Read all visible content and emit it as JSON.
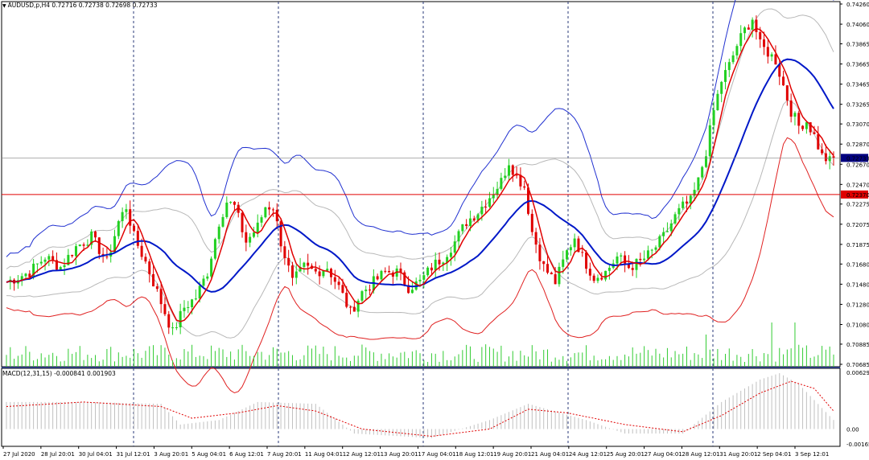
{
  "header": {
    "symbol_line": "AUDUSD,p,H4  0.72716 0.72738 0.72698 0.72733"
  },
  "macd": {
    "label": "MACD(12,31,15) -0.000841 0.001903",
    "levels": [
      "0.006293",
      "0.00",
      "-0.00165"
    ]
  },
  "price_axis": {
    "labels": [
      "0.74260",
      "0.74060",
      "0.73865",
      "0.73665",
      "0.73465",
      "0.73265",
      "0.73070",
      "0.72870",
      "0.72670",
      "0.72470",
      "0.72275",
      "0.72075",
      "0.71875",
      "0.71680",
      "0.71480",
      "0.71280",
      "0.71080",
      "0.70885",
      "0.70685"
    ],
    "current_price": "0.72733",
    "level_price": "0.72370",
    "current_color": "#000080",
    "level_color": "#e00000"
  },
  "time_axis": {
    "labels": [
      "27 Jul 2020",
      "28 Jul 20:01",
      "30 Jul 04:01",
      "31 Jul 12:01",
      "3 Aug 20:01",
      "5 Aug 04:01",
      "6 Aug 12:01",
      "7 Aug 20:01",
      "11 Aug 04:01",
      "12 Aug 12:01",
      "13 Aug 20:01",
      "17 Aug 04:01",
      "18 Aug 12:01",
      "19 Aug 20:01",
      "21 Aug 04:01",
      "24 Aug 12:01",
      "25 Aug 20:01",
      "27 Aug 04:01",
      "28 Aug 12:01",
      "31 Aug 20:01",
      "2 Sep 04:01",
      "3 Sep 12:01"
    ]
  },
  "colors": {
    "bull": "#22d022",
    "bear": "#e00000",
    "ma_fast": "#e00000",
    "ma_slow": "#0018c8",
    "band_upper": "#2030d0",
    "band_lower": "#e02020",
    "inner_bands": "#b8b8b8",
    "volume": "#33cc33",
    "macd_hist": "#c0c0c0",
    "macd_signal": "#e00000",
    "separators": "#2a3a7a"
  },
  "chart_data": {
    "type": "candlestick",
    "symbol": "AUDUSD,p",
    "timeframe": "H4",
    "price_range": [
      0.70685,
      0.7426
    ],
    "current_price": 0.72733,
    "horizontal_level": 0.7237,
    "close_path": [
      [
        0,
        0.715
      ],
      [
        6,
        0.716
      ],
      [
        10,
        0.7175
      ],
      [
        14,
        0.7165
      ],
      [
        18,
        0.7185
      ],
      [
        22,
        0.7195
      ],
      [
        26,
        0.717
      ],
      [
        29,
        0.721
      ],
      [
        31,
        0.7225
      ],
      [
        33,
        0.7195
      ],
      [
        36,
        0.717
      ],
      [
        40,
        0.713
      ],
      [
        43,
        0.71
      ],
      [
        46,
        0.7125
      ],
      [
        49,
        0.7135
      ],
      [
        52,
        0.716
      ],
      [
        55,
        0.721
      ],
      [
        57,
        0.723
      ],
      [
        59,
        0.7225
      ],
      [
        62,
        0.719
      ],
      [
        65,
        0.7205
      ],
      [
        67,
        0.7225
      ],
      [
        69,
        0.7225
      ],
      [
        71,
        0.719
      ],
      [
        74,
        0.715
      ],
      [
        77,
        0.7165
      ],
      [
        80,
        0.716
      ],
      [
        83,
        0.7165
      ],
      [
        86,
        0.7145
      ],
      [
        89,
        0.712
      ],
      [
        92,
        0.714
      ],
      [
        95,
        0.715
      ],
      [
        98,
        0.716
      ],
      [
        101,
        0.716
      ],
      [
        104,
        0.7145
      ],
      [
        107,
        0.715
      ],
      [
        110,
        0.7165
      ],
      [
        113,
        0.7175
      ],
      [
        116,
        0.719
      ],
      [
        119,
        0.721
      ],
      [
        122,
        0.722
      ],
      [
        125,
        0.7235
      ],
      [
        128,
        0.725
      ],
      [
        130,
        0.727
      ],
      [
        132,
        0.7255
      ],
      [
        134,
        0.7245
      ],
      [
        136,
        0.72
      ],
      [
        139,
        0.7165
      ],
      [
        142,
        0.715
      ],
      [
        145,
        0.718
      ],
      [
        147,
        0.7195
      ],
      [
        149,
        0.7175
      ],
      [
        152,
        0.7155
      ],
      [
        155,
        0.716
      ],
      [
        158,
        0.7175
      ],
      [
        161,
        0.7165
      ],
      [
        164,
        0.717
      ],
      [
        167,
        0.718
      ],
      [
        170,
        0.7195
      ],
      [
        173,
        0.7215
      ],
      [
        175,
        0.7225
      ],
      [
        177,
        0.723
      ],
      [
        179,
        0.725
      ],
      [
        181,
        0.728
      ],
      [
        183,
        0.732
      ],
      [
        185,
        0.735
      ],
      [
        187,
        0.7365
      ],
      [
        189,
        0.7385
      ],
      [
        191,
        0.74
      ],
      [
        193,
        0.7412
      ],
      [
        195,
        0.7385
      ],
      [
        197,
        0.7378
      ],
      [
        199,
        0.737
      ],
      [
        201,
        0.7345
      ],
      [
        203,
        0.732
      ],
      [
        205,
        0.7305
      ],
      [
        207,
        0.731
      ],
      [
        209,
        0.7295
      ],
      [
        211,
        0.7275
      ],
      [
        213,
        0.727
      ],
      [
        214,
        0.7273
      ]
    ],
    "volume_note": "volume histogram along the bottom of the price panel; highest spikes near 28 Aug and 3 Sep",
    "macd_histogram_path": [
      [
        0,
        0.003
      ],
      [
        20,
        0.003
      ],
      [
        40,
        0.0028
      ],
      [
        45,
        0.0005
      ],
      [
        55,
        0.001
      ],
      [
        65,
        0.003
      ],
      [
        80,
        0.0028
      ],
      [
        90,
        -0.0005
      ],
      [
        110,
        -0.001
      ],
      [
        125,
        0.001
      ],
      [
        135,
        0.0028
      ],
      [
        150,
        0.001
      ],
      [
        160,
        -0.0005
      ],
      [
        175,
        -0.0005
      ],
      [
        185,
        0.003
      ],
      [
        195,
        0.0055
      ],
      [
        200,
        0.0062
      ],
      [
        205,
        0.005
      ],
      [
        214,
        0.001
      ]
    ],
    "macd_signal_path": [
      [
        0,
        0.0025
      ],
      [
        20,
        0.003
      ],
      [
        40,
        0.0025
      ],
      [
        48,
        0.0012
      ],
      [
        60,
        0.0018
      ],
      [
        70,
        0.0026
      ],
      [
        80,
        0.002
      ],
      [
        92,
        0.0
      ],
      [
        110,
        -0.0008
      ],
      [
        125,
        0.0
      ],
      [
        135,
        0.0022
      ],
      [
        145,
        0.0018
      ],
      [
        160,
        0.0005
      ],
      [
        175,
        -0.0003
      ],
      [
        185,
        0.0015
      ],
      [
        195,
        0.004
      ],
      [
        203,
        0.0053
      ],
      [
        209,
        0.0045
      ],
      [
        214,
        0.002
      ]
    ]
  }
}
